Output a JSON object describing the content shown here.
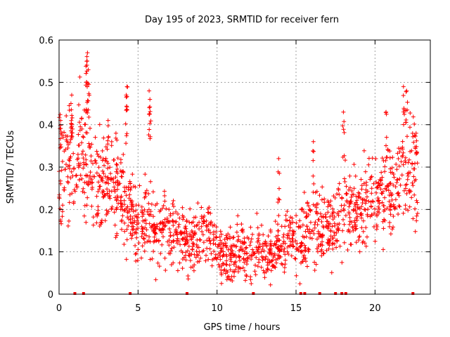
{
  "chart_data": {
    "type": "scatter",
    "title": "Day 195 of 2023, SRMTID for receiver fern",
    "xlabel": "GPS time / hours",
    "ylabel": "SRMTID / TECUs",
    "xlim": [
      0,
      23.5
    ],
    "ylim": [
      0,
      0.6
    ],
    "xticks": [
      0,
      5,
      10,
      15,
      20
    ],
    "yticks": [
      0,
      0.1,
      0.2,
      0.3,
      0.4,
      0.5,
      0.6
    ],
    "xtick_labels": [
      "0",
      "5",
      "10",
      "15",
      "20"
    ],
    "ytick_labels": [
      "0",
      "0.1",
      "0.2",
      "0.3",
      "0.4",
      "0.5",
      "0.6"
    ],
    "grid": true,
    "marker": "plus",
    "color": "#ff0000",
    "zero_markers_x": [
      1.0,
      1.55,
      4.5,
      8.1,
      12.3,
      15.3,
      15.55,
      16.5,
      17.5,
      17.9,
      18.15,
      22.4
    ],
    "trend": [
      {
        "x": 0.0,
        "y": 0.3
      },
      {
        "x": 0.5,
        "y": 0.3
      },
      {
        "x": 1.0,
        "y": 0.32
      },
      {
        "x": 1.5,
        "y": 0.33
      },
      {
        "x": 2.0,
        "y": 0.29
      },
      {
        "x": 2.5,
        "y": 0.27
      },
      {
        "x": 3.0,
        "y": 0.27
      },
      {
        "x": 3.5,
        "y": 0.25
      },
      {
        "x": 4.0,
        "y": 0.22
      },
      {
        "x": 4.5,
        "y": 0.2
      },
      {
        "x": 5.0,
        "y": 0.17
      },
      {
        "x": 5.5,
        "y": 0.18
      },
      {
        "x": 6.0,
        "y": 0.15
      },
      {
        "x": 6.5,
        "y": 0.15
      },
      {
        "x": 7.0,
        "y": 0.16
      },
      {
        "x": 7.5,
        "y": 0.14
      },
      {
        "x": 8.0,
        "y": 0.13
      },
      {
        "x": 8.5,
        "y": 0.12
      },
      {
        "x": 9.0,
        "y": 0.14
      },
      {
        "x": 9.5,
        "y": 0.16
      },
      {
        "x": 10.0,
        "y": 0.12
      },
      {
        "x": 10.5,
        "y": 0.08
      },
      {
        "x": 11.0,
        "y": 0.08
      },
      {
        "x": 11.5,
        "y": 0.1
      },
      {
        "x": 12.0,
        "y": 0.1
      },
      {
        "x": 12.5,
        "y": 0.11
      },
      {
        "x": 13.0,
        "y": 0.1
      },
      {
        "x": 13.5,
        "y": 0.1
      },
      {
        "x": 14.0,
        "y": 0.12
      },
      {
        "x": 14.5,
        "y": 0.14
      },
      {
        "x": 15.0,
        "y": 0.11
      },
      {
        "x": 15.5,
        "y": 0.13
      },
      {
        "x": 16.0,
        "y": 0.15
      },
      {
        "x": 16.5,
        "y": 0.15
      },
      {
        "x": 17.0,
        "y": 0.14
      },
      {
        "x": 17.5,
        "y": 0.17
      },
      {
        "x": 18.0,
        "y": 0.2
      },
      {
        "x": 18.5,
        "y": 0.2
      },
      {
        "x": 19.0,
        "y": 0.2
      },
      {
        "x": 19.5,
        "y": 0.22
      },
      {
        "x": 20.0,
        "y": 0.23
      },
      {
        "x": 20.5,
        "y": 0.24
      },
      {
        "x": 21.0,
        "y": 0.25
      },
      {
        "x": 21.5,
        "y": 0.28
      },
      {
        "x": 22.0,
        "y": 0.3
      },
      {
        "x": 22.5,
        "y": 0.28
      }
    ],
    "spread": [
      {
        "x": 0.0,
        "s": 0.07
      },
      {
        "x": 2.0,
        "s": 0.06
      },
      {
        "x": 4.0,
        "s": 0.05
      },
      {
        "x": 6.0,
        "s": 0.04
      },
      {
        "x": 10.0,
        "s": 0.035
      },
      {
        "x": 13.0,
        "s": 0.03
      },
      {
        "x": 16.0,
        "s": 0.04
      },
      {
        "x": 19.0,
        "s": 0.05
      },
      {
        "x": 22.5,
        "s": 0.06
      }
    ],
    "spikes": [
      {
        "x": 0.75,
        "y": 0.45
      },
      {
        "x": 0.8,
        "y": 0.47
      },
      {
        "x": 1.75,
        "y": 0.55
      },
      {
        "x": 1.8,
        "y": 0.57
      },
      {
        "x": 1.85,
        "y": 0.53
      },
      {
        "x": 1.75,
        "y": 0.5
      },
      {
        "x": 4.25,
        "y": 0.47
      },
      {
        "x": 4.3,
        "y": 0.49
      },
      {
        "x": 5.7,
        "y": 0.48
      },
      {
        "x": 5.75,
        "y": 0.46
      },
      {
        "x": 13.9,
        "y": 0.32
      },
      {
        "x": 16.1,
        "y": 0.36
      },
      {
        "x": 18.0,
        "y": 0.43
      },
      {
        "x": 20.7,
        "y": 0.43
      },
      {
        "x": 21.8,
        "y": 0.49
      },
      {
        "x": 22.0,
        "y": 0.48
      },
      {
        "x": 22.6,
        "y": 0.38
      },
      {
        "x": 0.1,
        "y": 0.41
      },
      {
        "x": 3.1,
        "y": 0.41
      },
      {
        "x": 3.6,
        "y": 0.38
      }
    ]
  }
}
